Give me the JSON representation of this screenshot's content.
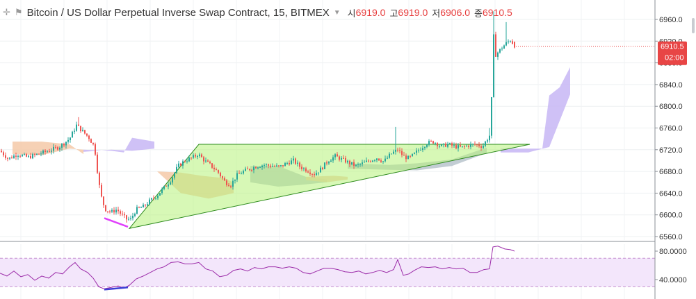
{
  "header": {
    "title": "Bitcoin / US Dollar Perpetual Inverse Swap Contract, 15, BITMEX",
    "ohlc": [
      {
        "label": "시",
        "value": "6919.0"
      },
      {
        "label": "고",
        "value": "6919.0"
      },
      {
        "label": "저",
        "value": "6906.0"
      },
      {
        "label": "종",
        "value": "6910.5"
      }
    ]
  },
  "price_tag": {
    "value": "6910.5",
    "countdown": "02:00"
  },
  "colors": {
    "up": "#26a69a",
    "down": "#ef5350",
    "triangle_fill": "#b7f37a",
    "triangle_stroke": "#2e8b1e",
    "cloud_up": "#f4c9a8",
    "cloud_down": "#b8c4cc",
    "cloud_future": "#c7b6f5",
    "divergence_price": "#e040fb",
    "divergence_rsi": "#3d3dd6",
    "rsi_line": "#9b2aa8",
    "rsi_band": "#f3e6fb",
    "tag_bg": "#e84545"
  },
  "chart_data": [
    {
      "type": "candlestick",
      "title": "",
      "ylim": [
        6550,
        6980
      ],
      "y_ticks": [
        "6960.0",
        "6920.0",
        "6880.0",
        "6840.0",
        "6800.0",
        "6760.0",
        "6720.0",
        "6680.0",
        "6640.0",
        "6600.0",
        "6560.0"
      ],
      "last": 6910.5,
      "path": [
        [
          0,
          6718
        ],
        [
          12,
          6703
        ],
        [
          25,
          6712
        ],
        [
          40,
          6706
        ],
        [
          55,
          6712
        ],
        [
          70,
          6718
        ],
        [
          85,
          6725
        ],
        [
          100,
          6740
        ],
        [
          110,
          6765
        ],
        [
          118,
          6755
        ],
        [
          128,
          6742
        ],
        [
          136,
          6725
        ],
        [
          142,
          6660
        ],
        [
          147,
          6625
        ],
        [
          152,
          6610
        ],
        [
          160,
          6605
        ],
        [
          168,
          6610
        ],
        [
          175,
          6600
        ],
        [
          182,
          6592
        ],
        [
          188,
          6592
        ],
        [
          196,
          6610
        ],
        [
          206,
          6615
        ],
        [
          215,
          6625
        ],
        [
          226,
          6636
        ],
        [
          236,
          6650
        ],
        [
          246,
          6665
        ],
        [
          256,
          6690
        ],
        [
          266,
          6700
        ],
        [
          276,
          6705
        ],
        [
          285,
          6712
        ],
        [
          294,
          6700
        ],
        [
          304,
          6690
        ],
        [
          314,
          6678
        ],
        [
          324,
          6660
        ],
        [
          332,
          6655
        ],
        [
          340,
          6672
        ],
        [
          350,
          6680
        ],
        [
          360,
          6685
        ],
        [
          370,
          6690
        ],
        [
          380,
          6692
        ],
        [
          392,
          6690
        ],
        [
          402,
          6688
        ],
        [
          412,
          6695
        ],
        [
          422,
          6700
        ],
        [
          432,
          6688
        ],
        [
          442,
          6682
        ],
        [
          452,
          6675
        ],
        [
          462,
          6685
        ],
        [
          472,
          6700
        ],
        [
          482,
          6708
        ],
        [
          492,
          6702
        ],
        [
          502,
          6696
        ],
        [
          512,
          6690
        ],
        [
          522,
          6695
        ],
        [
          532,
          6700
        ],
        [
          542,
          6705
        ],
        [
          552,
          6698
        ],
        [
          562,
          6712
        ],
        [
          572,
          6720
        ],
        [
          580,
          6708
        ],
        [
          588,
          6704
        ],
        [
          596,
          6712
        ],
        [
          604,
          6722
        ],
        [
          614,
          6732
        ],
        [
          624,
          6735
        ],
        [
          634,
          6726
        ],
        [
          644,
          6730
        ],
        [
          654,
          6726
        ],
        [
          664,
          6724
        ],
        [
          674,
          6728
        ],
        [
          684,
          6730
        ],
        [
          694,
          6726
        ],
        [
          700,
          6738
        ],
        [
          706,
          6750
        ],
        [
          709,
          6940
        ],
        [
          713,
          6895
        ],
        [
          720,
          6905
        ],
        [
          727,
          6915
        ],
        [
          734,
          6922
        ],
        [
          740,
          6912
        ]
      ],
      "spikes": [
        [
          115,
          6780
        ],
        [
          571,
          6762
        ],
        [
          710,
          6975
        ],
        [
          729,
          6955
        ],
        [
          705,
          6760
        ]
      ],
      "triangle": [
        [
          186,
          6575
        ],
        [
          286,
          6730
        ],
        [
          762,
          6730
        ]
      ],
      "cloud": [
        {
          "kind": "up",
          "points": [
            [
              18,
              6735
            ],
            [
              60,
              6735
            ],
            [
              100,
              6730
            ],
            [
              120,
              6712
            ],
            [
              120,
              6720
            ],
            [
              100,
              6722
            ],
            [
              60,
              6710
            ],
            [
              18,
              6712
            ]
          ]
        },
        {
          "kind": "future",
          "points": [
            [
              120,
              6720
            ],
            [
              160,
              6718
            ],
            [
              178,
              6715
            ],
            [
              190,
              6742
            ],
            [
              222,
              6735
            ],
            [
              222,
              6722
            ],
            [
              190,
              6718
            ],
            [
              160,
              6720
            ],
            [
              120,
              6716
            ]
          ]
        },
        {
          "kind": "up",
          "points": [
            [
              226,
              6680
            ],
            [
              260,
              6678
            ],
            [
              290,
              6672
            ],
            [
              320,
              6668
            ],
            [
              336,
              6660
            ],
            [
              336,
              6640
            ],
            [
              300,
              6630
            ],
            [
              260,
              6640
            ],
            [
              226,
              6680
            ]
          ]
        },
        {
          "kind": "down",
          "points": [
            [
              360,
              6690
            ],
            [
              400,
              6690
            ],
            [
              440,
              6670
            ],
            [
              470,
              6665
            ],
            [
              470,
              6660
            ],
            [
              430,
              6655
            ],
            [
              400,
              6652
            ],
            [
              360,
              6660
            ]
          ]
        },
        {
          "kind": "up",
          "points": [
            [
              440,
              6670
            ],
            [
              480,
              6672
            ],
            [
              500,
              6670
            ],
            [
              500,
              6665
            ],
            [
              470,
              6660
            ],
            [
              440,
              6664
            ]
          ]
        },
        {
          "kind": "down",
          "points": [
            [
              500,
              6695
            ],
            [
              560,
              6692
            ],
            [
              600,
              6695
            ],
            [
              650,
              6702
            ],
            [
              700,
              6724
            ],
            [
              700,
              6714
            ],
            [
              650,
              6690
            ],
            [
              600,
              6682
            ],
            [
              560,
              6683
            ],
            [
              500,
              6685
            ]
          ]
        },
        {
          "kind": "future",
          "points": [
            [
              720,
              6722
            ],
            [
              780,
              6722
            ],
            [
              790,
              6820
            ],
            [
              805,
              6835
            ],
            [
              820,
              6872
            ],
            [
              820,
              6822
            ],
            [
              790,
              6725
            ],
            [
              760,
              6715
            ],
            [
              720,
              6715
            ]
          ]
        }
      ],
      "divergence": [
        [
          150,
          6594
        ],
        [
          184,
          6578
        ]
      ]
    },
    {
      "type": "line",
      "title": "",
      "ylim": [
        20,
        90
      ],
      "y_ticks": [
        "80.0000",
        "40.0000"
      ],
      "bands": [
        70,
        30
      ],
      "values": [
        [
          0,
          49
        ],
        [
          10,
          45
        ],
        [
          20,
          52
        ],
        [
          30,
          44
        ],
        [
          40,
          47
        ],
        [
          50,
          39
        ],
        [
          60,
          45
        ],
        [
          70,
          42
        ],
        [
          80,
          50
        ],
        [
          90,
          48
        ],
        [
          100,
          58
        ],
        [
          108,
          64
        ],
        [
          116,
          55
        ],
        [
          126,
          50
        ],
        [
          134,
          42
        ],
        [
          142,
          30
        ],
        [
          150,
          27
        ],
        [
          160,
          29
        ],
        [
          170,
          31
        ],
        [
          178,
          28
        ],
        [
          186,
          32
        ],
        [
          196,
          41
        ],
        [
          206,
          45
        ],
        [
          216,
          50
        ],
        [
          226,
          55
        ],
        [
          236,
          58
        ],
        [
          246,
          64
        ],
        [
          256,
          65
        ],
        [
          266,
          62
        ],
        [
          276,
          62
        ],
        [
          286,
          64
        ],
        [
          296,
          55
        ],
        [
          306,
          52
        ],
        [
          316,
          44
        ],
        [
          326,
          46
        ],
        [
          336,
          53
        ],
        [
          346,
          55
        ],
        [
          356,
          52
        ],
        [
          366,
          57
        ],
        [
          376,
          55
        ],
        [
          386,
          58
        ],
        [
          396,
          58
        ],
        [
          406,
          56
        ],
        [
          416,
          58
        ],
        [
          426,
          56
        ],
        [
          436,
          50
        ],
        [
          446,
          48
        ],
        [
          456,
          52
        ],
        [
          466,
          56
        ],
        [
          476,
          56
        ],
        [
          486,
          54
        ],
        [
          496,
          51
        ],
        [
          506,
          50
        ],
        [
          516,
          52
        ],
        [
          526,
          48
        ],
        [
          536,
          50
        ],
        [
          546,
          53
        ],
        [
          556,
          50
        ],
        [
          566,
          54
        ],
        [
          572,
          68
        ],
        [
          580,
          46
        ],
        [
          588,
          48
        ],
        [
          596,
          53
        ],
        [
          606,
          58
        ],
        [
          616,
          57
        ],
        [
          626,
          58
        ],
        [
          636,
          55
        ],
        [
          646,
          57
        ],
        [
          656,
          55
        ],
        [
          666,
          56
        ],
        [
          676,
          50
        ],
        [
          686,
          50
        ],
        [
          696,
          54
        ],
        [
          704,
          55
        ],
        [
          709,
          86
        ],
        [
          716,
          87
        ],
        [
          726,
          83
        ],
        [
          734,
          82
        ],
        [
          740,
          80
        ]
      ],
      "divergence": [
        [
          150,
          26
        ],
        [
          184,
          29
        ]
      ]
    }
  ]
}
